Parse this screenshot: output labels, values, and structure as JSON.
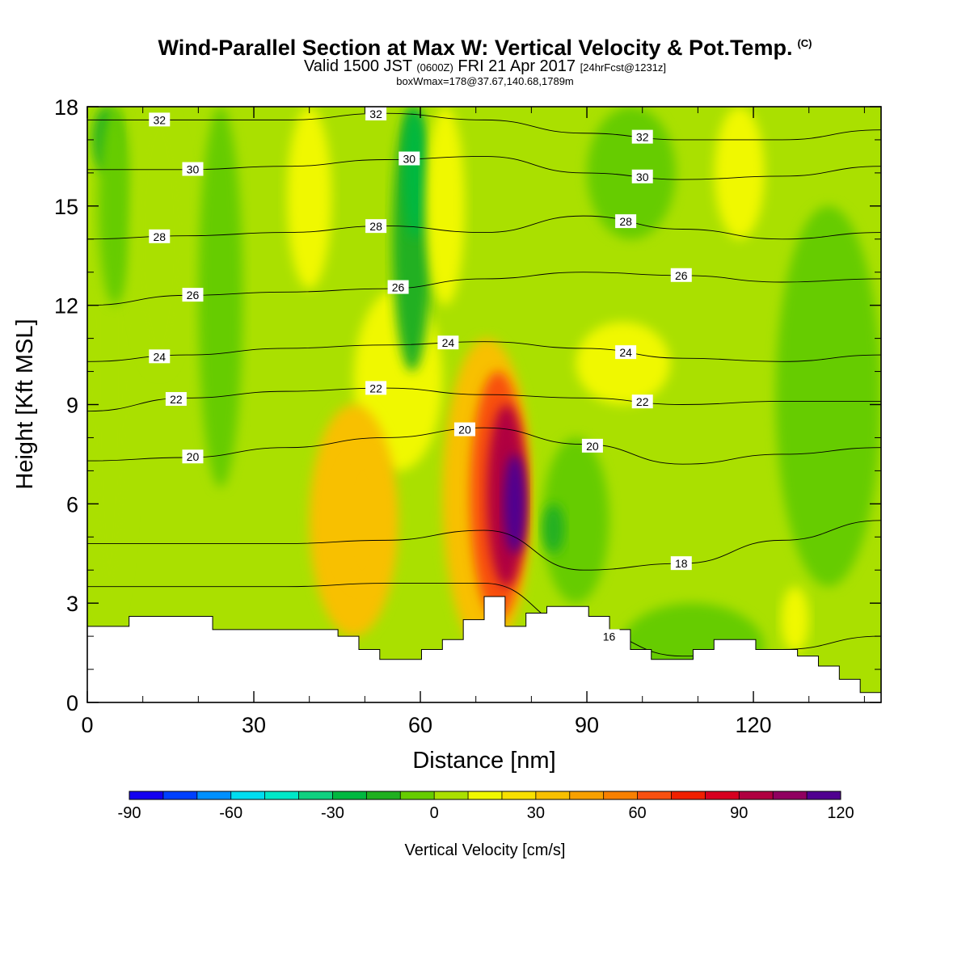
{
  "header": {
    "title": "Wind-Parallel Section at Max W: Vertical Velocity & Pot.Temp.",
    "copyright": "(C)",
    "valid_prefix": "Valid 1500 JST",
    "valid_utc": "(0600Z)",
    "valid_date": "FRI 21 Apr 2017",
    "forecast": "[24hrFcst@1231z]",
    "box_info": "boxWmax=178@37.67,140.68,1789m"
  },
  "chart_data": {
    "type": "heatmap",
    "xlabel": "Distance [nm]",
    "ylabel": "Height [Kft MSL]",
    "xlim": [
      0,
      143
    ],
    "ylim": [
      0,
      18
    ],
    "x_ticks": [
      "0",
      "30",
      "60",
      "90",
      "120"
    ],
    "x_tick_values": [
      0,
      30,
      60,
      90,
      120
    ],
    "y_ticks": [
      "0",
      "3",
      "6",
      "9",
      "12",
      "15",
      "18"
    ],
    "y_tick_values": [
      0,
      3,
      6,
      9,
      12,
      15,
      18
    ],
    "grid": false,
    "colorbar": {
      "title": "Vertical Velocity [cm/s]",
      "tick_labels": [
        "-90",
        "-60",
        "-30",
        "0",
        "30",
        "60",
        "90",
        "120"
      ],
      "tick_values": [
        -90,
        -60,
        -30,
        0,
        30,
        60,
        90,
        120
      ],
      "range": [
        -90,
        120
      ],
      "step": 10,
      "colors": [
        "#1400f0",
        "#0040ff",
        "#0090ff",
        "#00ddf0",
        "#00e8c8",
        "#10d080",
        "#00b840",
        "#20b020",
        "#66cc00",
        "#aae000",
        "#f0f800",
        "#f8e000",
        "#f8c000",
        "#f8a000",
        "#f88000",
        "#f85010",
        "#f02000",
        "#d80020",
        "#b00040",
        "#900060",
        "#500090"
      ]
    },
    "velocity_cells": [
      {
        "x": [
          0,
          8
        ],
        "y": [
          2.5,
          18
        ],
        "w": 0
      },
      {
        "x": [
          1,
          6
        ],
        "y": [
          16,
          18
        ],
        "w": -20
      },
      {
        "x": [
          2,
          8
        ],
        "y": [
          12,
          18
        ],
        "w": -10
      },
      {
        "x": [
          8,
          18
        ],
        "y": [
          10,
          18
        ],
        "w": 5
      },
      {
        "x": [
          20,
          28
        ],
        "y": [
          6.5,
          18
        ],
        "w": -5
      },
      {
        "x": [
          36,
          44
        ],
        "y": [
          12.5,
          18
        ],
        "w": 15
      },
      {
        "x": [
          48,
          64
        ],
        "y": [
          7,
          12.5
        ],
        "w": 18
      },
      {
        "x": [
          40,
          56
        ],
        "y": [
          2,
          9
        ],
        "w": 30
      },
      {
        "x": [
          45,
          54
        ],
        "y": [
          3.5,
          7.5
        ],
        "w": 38
      },
      {
        "x": [
          55,
          62
        ],
        "y": [
          10,
          18
        ],
        "w": -15
      },
      {
        "x": [
          57,
          61
        ],
        "y": [
          14,
          18
        ],
        "w": -30
      },
      {
        "x": [
          61,
          68
        ],
        "y": [
          12,
          18
        ],
        "w": 15
      },
      {
        "x": [
          64,
          80
        ],
        "y": [
          1.5,
          11
        ],
        "w": 30
      },
      {
        "x": [
          69,
          79
        ],
        "y": [
          2.5,
          10
        ],
        "w": 60
      },
      {
        "x": [
          72,
          79
        ],
        "y": [
          3.5,
          9
        ],
        "w": 90
      },
      {
        "x": [
          75,
          79
        ],
        "y": [
          4.5,
          7.5
        ],
        "w": 110
      },
      {
        "x": [
          82,
          94
        ],
        "y": [
          3,
          8
        ],
        "w": -10
      },
      {
        "x": [
          82,
          86
        ],
        "y": [
          4.5,
          6
        ],
        "w": -20
      },
      {
        "x": [
          90,
          106
        ],
        "y": [
          14,
          18
        ],
        "w": -10
      },
      {
        "x": [
          88,
          105
        ],
        "y": [
          9,
          11.5
        ],
        "w": 15
      },
      {
        "x": [
          113,
          122
        ],
        "y": [
          14,
          18
        ],
        "w": 15
      },
      {
        "x": [
          124,
          143
        ],
        "y": [
          3.5,
          15
        ],
        "w": -5
      },
      {
        "x": [
          125,
          130
        ],
        "y": [
          1.5,
          3.5
        ],
        "w": 15
      },
      {
        "x": [
          96,
          122
        ],
        "y": [
          0.3,
          3
        ],
        "w": -5
      }
    ],
    "theta_contours": [
      {
        "level": 32,
        "y": [
          17.6,
          17.6,
          17.6,
          17.8,
          17.6,
          17.2,
          17.0,
          17.0,
          17.3
        ],
        "label_x": [
          13,
          52,
          100
        ]
      },
      {
        "level": 30,
        "y": [
          16.1,
          16.1,
          16.2,
          16.4,
          16.5,
          16.0,
          15.8,
          15.9,
          16.2
        ],
        "label_x": [
          19,
          58,
          100
        ]
      },
      {
        "level": 28,
        "y": [
          14.0,
          14.1,
          14.2,
          14.4,
          14.2,
          14.7,
          14.3,
          14.0,
          14.2
        ],
        "label_x": [
          13,
          52,
          97
        ]
      },
      {
        "level": 26,
        "y": [
          12.0,
          12.3,
          12.4,
          12.5,
          12.8,
          13.0,
          12.9,
          12.7,
          12.8
        ],
        "label_x": [
          19,
          56,
          107
        ]
      },
      {
        "level": 24,
        "y": [
          10.3,
          10.5,
          10.7,
          10.8,
          10.9,
          10.7,
          10.4,
          10.3,
          10.5
        ],
        "label_x": [
          13,
          65,
          97
        ]
      },
      {
        "level": 22,
        "y": [
          8.8,
          9.2,
          9.4,
          9.5,
          9.3,
          9.2,
          9.0,
          9.1,
          9.1
        ],
        "label_x": [
          16,
          52,
          100
        ]
      },
      {
        "level": 20,
        "y": [
          7.3,
          7.4,
          7.7,
          8.0,
          8.3,
          7.8,
          7.2,
          7.5,
          7.7
        ],
        "label_x": [
          19,
          68,
          91
        ]
      },
      {
        "level": 18,
        "y": [
          4.8,
          4.8,
          4.8,
          4.9,
          5.2,
          4.0,
          4.2,
          4.9,
          5.5
        ],
        "label_x": [
          107
        ]
      },
      {
        "level": 16,
        "y": [
          3.5,
          3.5,
          3.5,
          3.6,
          3.6,
          2.2,
          1.4,
          1.6,
          2.0
        ],
        "label_x": [
          94
        ]
      }
    ],
    "terrain_top_kft": [
      2.3,
      2.3,
      2.6,
      2.6,
      2.6,
      2.6,
      2.2,
      2.2,
      2.2,
      2.2,
      2.2,
      2.2,
      2.0,
      1.6,
      1.3,
      1.3,
      1.6,
      1.9,
      2.5,
      3.2,
      2.3,
      2.7,
      2.9,
      2.9,
      2.6,
      2.2,
      1.6,
      1.3,
      1.3,
      1.6,
      1.9,
      1.9,
      1.6,
      1.6,
      1.4,
      1.1,
      0.7,
      0.3,
      0.3
    ]
  }
}
